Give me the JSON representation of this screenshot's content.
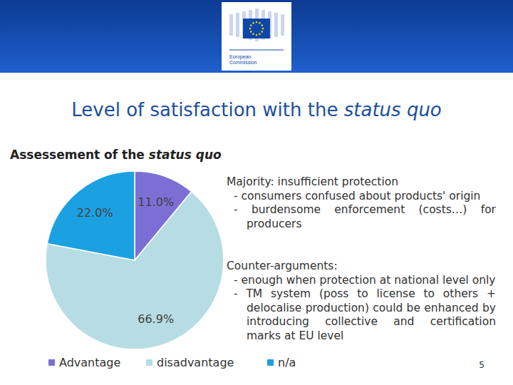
{
  "header": {
    "logo": [
      "European",
      "Commission"
    ]
  },
  "slide": {
    "title": [
      {
        "text": "Level of satisfaction with the "
      },
      {
        "text": "status quo",
        "italic": true
      }
    ],
    "notes": [
      {
        "heading": "Majority: insufficient protection",
        "items": [
          "- consumers confused about products' origin",
          "- burdensome enforcement (costs…) for producers"
        ]
      },
      {
        "heading": "Counter-arguments:",
        "items": [
          "- enough when protection at national level only",
          "- TM system (poss to license to others + delocalise production) could be enhanced by introducing collective and certification marks at EU level"
        ]
      }
    ],
    "page": "5"
  },
  "chart_data": {
    "type": "pie",
    "title": "Assessement of the status quo",
    "categories": [
      "Advantage",
      "disadvantage",
      "n/a"
    ],
    "values": [
      11.0,
      66.9,
      22.0
    ],
    "value_labels": [
      "11.0%",
      "66.9%",
      "22.0%"
    ],
    "colors": [
      "#7b6fd6",
      "#b7dde4",
      "#1ba1e2"
    ],
    "data_labels": true,
    "legend": "bottom"
  }
}
